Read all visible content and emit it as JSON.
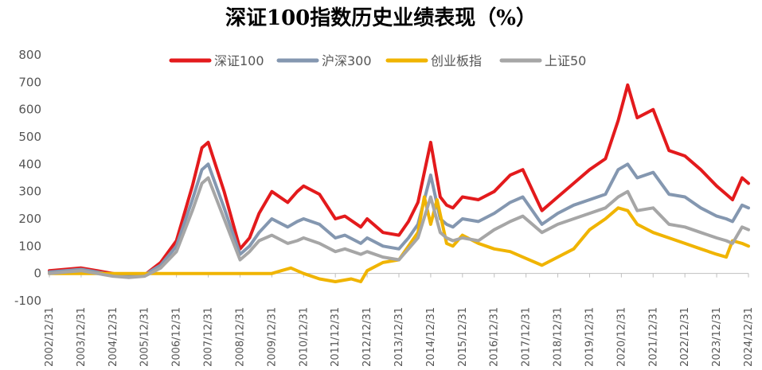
{
  "chart_data": {
    "type": "line",
    "title": "深证100指数历史业绩表现（%）",
    "xlabel": "",
    "ylabel": "",
    "ylim": [
      -100,
      800
    ],
    "yticks": [
      -100,
      0,
      100,
      200,
      300,
      400,
      500,
      600,
      700,
      800
    ],
    "categories": [
      "2002/12/31",
      "2003/12/31",
      "2004/12/31",
      "2005/12/31",
      "2006/12/31",
      "2007/12/31",
      "2008/12/31",
      "2009/12/31",
      "2010/12/31",
      "2011/12/31",
      "2012/12/31",
      "2013/12/31",
      "2014/12/31",
      "2015/12/31",
      "2016/12/31",
      "2017/12/31",
      "2018/12/31",
      "2019/12/31",
      "2020/12/31",
      "2021/12/31",
      "2022/12/31",
      "2023/12/31",
      "2024/12/31"
    ],
    "legend_position": "top",
    "grid": false,
    "series": [
      {
        "name": "深证100",
        "color": "#e31a1c",
        "x": [
          2003.0,
          2003.5,
          2004.0,
          2004.5,
          2005.0,
          2005.5,
          2006.0,
          2006.5,
          2007.0,
          2007.5,
          2007.8,
          2008.0,
          2008.5,
          2009.0,
          2009.3,
          2009.6,
          2010.0,
          2010.5,
          2010.8,
          2011.0,
          2011.5,
          2012.0,
          2012.3,
          2012.8,
          2013.0,
          2013.5,
          2014.0,
          2014.3,
          2014.6,
          2015.0,
          2015.3,
          2015.5,
          2015.7,
          2016.0,
          2016.5,
          2017.0,
          2017.5,
          2017.9,
          2018.5,
          2019.0,
          2019.5,
          2020.0,
          2020.5,
          2020.9,
          2021.2,
          2021.5,
          2022.0,
          2022.5,
          2023.0,
          2023.5,
          2024.0,
          2024.3,
          2024.5,
          2024.8,
          2025.0
        ],
        "y": [
          10,
          15,
          20,
          10,
          0,
          -10,
          -5,
          40,
          120,
          320,
          460,
          480,
          300,
          90,
          130,
          220,
          300,
          260,
          300,
          320,
          290,
          200,
          210,
          170,
          200,
          150,
          140,
          190,
          260,
          480,
          280,
          250,
          240,
          280,
          270,
          300,
          360,
          380,
          230,
          280,
          330,
          380,
          420,
          560,
          690,
          570,
          600,
          450,
          430,
          380,
          320,
          290,
          270,
          350,
          330
        ]
      },
      {
        "name": "沪深300",
        "color": "#8497b0",
        "x": [
          2003.0,
          2003.5,
          2004.0,
          2004.5,
          2005.0,
          2005.5,
          2006.0,
          2006.5,
          2007.0,
          2007.5,
          2007.8,
          2008.0,
          2008.5,
          2009.0,
          2009.3,
          2009.6,
          2010.0,
          2010.5,
          2010.8,
          2011.0,
          2011.5,
          2012.0,
          2012.3,
          2012.8,
          2013.0,
          2013.5,
          2014.0,
          2014.3,
          2014.6,
          2015.0,
          2015.3,
          2015.5,
          2015.7,
          2016.0,
          2016.5,
          2017.0,
          2017.5,
          2017.9,
          2018.5,
          2019.0,
          2019.5,
          2020.0,
          2020.5,
          2020.9,
          2021.2,
          2021.5,
          2022.0,
          2022.5,
          2023.0,
          2023.5,
          2024.0,
          2024.3,
          2024.5,
          2024.8,
          2025.0
        ],
        "y": [
          5,
          10,
          15,
          5,
          -5,
          -10,
          -5,
          30,
          100,
          270,
          380,
          400,
          240,
          70,
          100,
          150,
          200,
          170,
          190,
          200,
          180,
          130,
          140,
          110,
          130,
          100,
          90,
          130,
          180,
          360,
          200,
          180,
          170,
          200,
          190,
          220,
          260,
          280,
          180,
          220,
          250,
          270,
          290,
          380,
          400,
          350,
          370,
          290,
          280,
          240,
          210,
          200,
          190,
          250,
          240
        ]
      },
      {
        "name": "创业板指",
        "color": "#f0b400",
        "x": [
          2003.0,
          2010.0,
          2010.3,
          2010.6,
          2011.0,
          2011.5,
          2012.0,
          2012.5,
          2012.8,
          2013.0,
          2013.5,
          2014.0,
          2014.3,
          2014.6,
          2014.8,
          2015.0,
          2015.2,
          2015.5,
          2015.7,
          2016.0,
          2016.5,
          2017.0,
          2017.5,
          2017.9,
          2018.5,
          2019.0,
          2019.5,
          2020.0,
          2020.5,
          2020.9,
          2021.2,
          2021.5,
          2022.0,
          2022.5,
          2023.0,
          2023.5,
          2024.0,
          2024.3,
          2024.5,
          2024.8,
          2025.0
        ],
        "y": [
          0,
          0,
          10,
          20,
          0,
          -20,
          -30,
          -20,
          -30,
          10,
          40,
          50,
          100,
          150,
          280,
          180,
          270,
          110,
          100,
          140,
          110,
          90,
          80,
          60,
          30,
          60,
          90,
          160,
          200,
          240,
          230,
          180,
          150,
          130,
          110,
          90,
          70,
          60,
          120,
          110,
          100
        ]
      },
      {
        "name": "上证50",
        "color": "#a6a6a6",
        "x": [
          2003.0,
          2003.5,
          2004.0,
          2004.5,
          2005.0,
          2005.5,
          2006.0,
          2006.5,
          2007.0,
          2007.5,
          2007.8,
          2008.0,
          2008.5,
          2009.0,
          2009.3,
          2009.6,
          2010.0,
          2010.5,
          2010.8,
          2011.0,
          2011.5,
          2012.0,
          2012.3,
          2012.8,
          2013.0,
          2013.5,
          2014.0,
          2014.3,
          2014.6,
          2015.0,
          2015.3,
          2015.5,
          2015.7,
          2016.0,
          2016.5,
          2017.0,
          2017.5,
          2017.9,
          2018.5,
          2019.0,
          2019.5,
          2020.0,
          2020.5,
          2020.9,
          2021.2,
          2021.5,
          2022.0,
          2022.5,
          2023.0,
          2023.5,
          2024.0,
          2024.3,
          2024.5,
          2024.8,
          2025.0
        ],
        "y": [
          0,
          5,
          10,
          0,
          -10,
          -15,
          -10,
          20,
          80,
          230,
          330,
          350,
          200,
          50,
          80,
          120,
          140,
          110,
          120,
          130,
          110,
          80,
          90,
          70,
          80,
          60,
          50,
          90,
          130,
          280,
          150,
          130,
          120,
          130,
          120,
          160,
          190,
          210,
          150,
          180,
          200,
          220,
          240,
          280,
          300,
          230,
          240,
          180,
          170,
          150,
          130,
          120,
          110,
          170,
          160
        ]
      }
    ]
  }
}
